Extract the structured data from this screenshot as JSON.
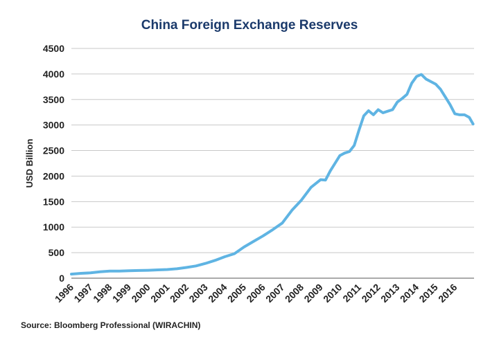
{
  "chart_data": {
    "type": "line",
    "title": "China Foreign Exchange Reserves",
    "xlabel": "",
    "ylabel": "USD Billion",
    "source": "Source: Bloomberg Professional (WIRACHIN)",
    "ylim": [
      0,
      4500
    ],
    "xlim": [
      1996,
      2017
    ],
    "yticks": [
      0,
      500,
      1000,
      1500,
      2000,
      2500,
      3000,
      3500,
      4000,
      4500
    ],
    "xtick_labels": [
      "1996",
      "1997",
      "1998",
      "1999",
      "2000",
      "2001",
      "2002",
      "2003",
      "2004",
      "2005",
      "2006",
      "2007",
      "2008",
      "2009",
      "2010",
      "2011",
      "2012",
      "2013",
      "2014",
      "2015",
      "2016"
    ],
    "grid": true,
    "series": [
      {
        "name": "China Foreign Exchange Reserves",
        "color": "#5fb4e3",
        "x": [
          1996.0,
          1996.5,
          1997.0,
          1997.5,
          1998.0,
          1998.5,
          1999.0,
          1999.5,
          2000.0,
          2000.5,
          2001.0,
          2001.5,
          2002.0,
          2002.5,
          2003.0,
          2003.5,
          2004.0,
          2004.5,
          2005.0,
          2005.5,
          2006.0,
          2006.5,
          2007.0,
          2007.5,
          2008.0,
          2008.5,
          2009.0,
          2009.25,
          2009.5,
          2009.75,
          2010.0,
          2010.25,
          2010.5,
          2010.75,
          2011.0,
          2011.25,
          2011.5,
          2011.75,
          2012.0,
          2012.25,
          2012.5,
          2012.75,
          2013.0,
          2013.25,
          2013.5,
          2013.75,
          2014.0,
          2014.25,
          2014.5,
          2014.75,
          2015.0,
          2015.25,
          2015.5,
          2015.75,
          2016.0,
          2016.25,
          2016.5,
          2016.75,
          2016.95
        ],
        "values": [
          80,
          95,
          105,
          125,
          140,
          140,
          145,
          150,
          155,
          162,
          170,
          185,
          210,
          240,
          290,
          350,
          420,
          480,
          610,
          720,
          830,
          950,
          1080,
          1330,
          1530,
          1780,
          1930,
          1920,
          2100,
          2250,
          2400,
          2450,
          2480,
          2600,
          2900,
          3180,
          3280,
          3200,
          3300,
          3240,
          3270,
          3300,
          3450,
          3520,
          3600,
          3820,
          3950,
          3990,
          3900,
          3850,
          3800,
          3700,
          3550,
          3400,
          3220,
          3200,
          3200,
          3150,
          3020
        ]
      }
    ]
  }
}
